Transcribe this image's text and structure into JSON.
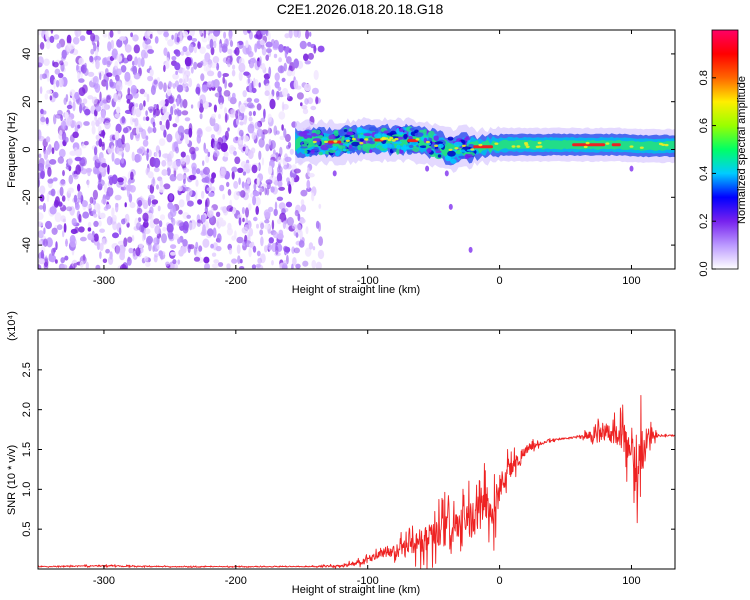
{
  "title": "C2E1.2026.018.20.18.G18",
  "colors": {
    "snr_line": "#ee2222",
    "point_cloud": "#7a22dd",
    "spectral_band_core": "#ee2222",
    "spectral_band_mid": "#22dd88",
    "spectral_band_edge": "#3355ee"
  },
  "chart_data": [
    {
      "type": "heatmap",
      "xlabel": "Height of straight line (km)",
      "ylabel": "Frequency (Hz)",
      "xlim": [
        -350,
        133
      ],
      "ylim": [
        -50,
        50
      ],
      "xticks": [
        -300,
        -200,
        -100,
        0,
        100
      ],
      "yticks": [
        -40,
        -20,
        0,
        20,
        40
      ],
      "colorbar": {
        "label": "Normalized spectral amplitude",
        "range": [
          0.0,
          1.0
        ],
        "ticks": [
          "0.0",
          "0.2",
          "0.4",
          "0.6",
          "0.8"
        ],
        "tick_values": [
          0.0,
          0.2,
          0.4,
          0.6,
          0.8
        ],
        "colors": [
          "#ffffff",
          "#bb99ff",
          "#7722ee",
          "#0000ff",
          "#00ccff",
          "#00ff66",
          "#99ff00",
          "#ffee00",
          "#ff6600",
          "#ff0000",
          "#ff0066"
        ]
      },
      "noise_region_x": [
        -350,
        -135
      ],
      "noise_region_y": [
        -50,
        50
      ],
      "band_center": [
        {
          "x": -155,
          "y": 2.5
        },
        {
          "x": -130,
          "y": 3.0
        },
        {
          "x": -110,
          "y": 3.5
        },
        {
          "x": -90,
          "y": 4.0
        },
        {
          "x": -70,
          "y": 4.0
        },
        {
          "x": -55,
          "y": 3.0
        },
        {
          "x": -45,
          "y": 1.5
        },
        {
          "x": -38,
          "y": -0.5
        },
        {
          "x": -30,
          "y": 0.5
        },
        {
          "x": -15,
          "y": 1.0
        },
        {
          "x": 0,
          "y": 2.0
        },
        {
          "x": 20,
          "y": 2.0
        },
        {
          "x": 60,
          "y": 2.0
        },
        {
          "x": 90,
          "y": 2.0
        },
        {
          "x": 110,
          "y": 1.5
        },
        {
          "x": 133,
          "y": 1.5
        }
      ],
      "scattered_features": [
        {
          "x": -55,
          "y": -8
        },
        {
          "x": -40,
          "y": -10
        },
        {
          "x": -37,
          "y": -24
        },
        {
          "x": -22,
          "y": -42
        },
        {
          "x": -125,
          "y": -10
        },
        {
          "x": 100,
          "y": -8
        }
      ]
    },
    {
      "type": "line",
      "xlabel": "Height of straight line (km)",
      "ylabel": "SNR (10 * v/v)",
      "y_multiplier": "(x10⁴)",
      "xlim": [
        -350,
        133
      ],
      "ylim": [
        0,
        3.0
      ],
      "xticks": [
        -300,
        -200,
        -100,
        0,
        100
      ],
      "yticks": [
        "0.5",
        "1.0",
        "1.5",
        "2.0",
        "2.5"
      ],
      "ytick_values": [
        0.5,
        1.0,
        1.5,
        2.0,
        2.5
      ],
      "series": [
        {
          "x": [
            -350,
            -300,
            -250,
            -200,
            -150,
            -120,
            -105,
            -90,
            -80,
            -70,
            -60,
            -50,
            -40,
            -30,
            -20,
            -10,
            -5,
            0,
            10,
            20,
            30,
            40,
            50,
            60,
            70,
            80,
            90,
            100,
            105,
            110,
            120,
            133
          ],
          "y": [
            0.03,
            0.04,
            0.03,
            0.03,
            0.03,
            0.04,
            0.08,
            0.18,
            0.22,
            0.28,
            0.35,
            0.42,
            0.48,
            0.55,
            0.62,
            0.85,
            0.65,
            1.05,
            1.3,
            1.5,
            1.57,
            1.62,
            1.64,
            1.66,
            1.68,
            1.7,
            1.7,
            1.55,
            1.2,
            1.65,
            1.67,
            1.68
          ],
          "noise_amp": [
            0.01,
            0.02,
            0.01,
            0.01,
            0.01,
            0.03,
            0.08,
            0.12,
            0.18,
            0.25,
            0.35,
            0.45,
            0.5,
            0.45,
            0.55,
            0.65,
            0.6,
            0.45,
            0.25,
            0.15,
            0.05,
            0.03,
            0.02,
            0.02,
            0.15,
            0.25,
            0.35,
            0.6,
            1.2,
            0.4,
            0.02,
            0.02
          ]
        }
      ]
    }
  ]
}
